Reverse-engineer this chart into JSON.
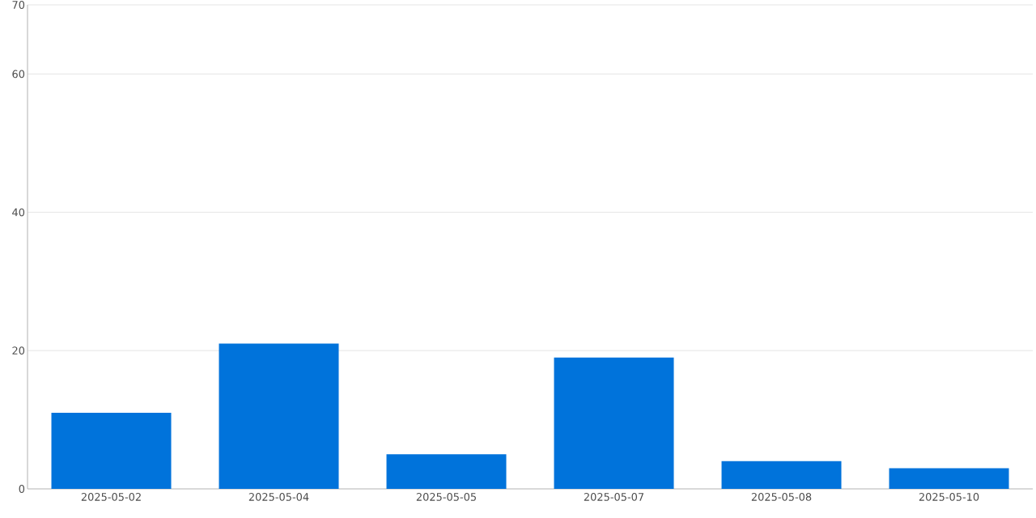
{
  "chart_data": {
    "type": "bar",
    "categories": [
      "2025-05-02",
      "2025-05-04",
      "2025-05-05",
      "2025-05-07",
      "2025-05-08",
      "2025-05-10"
    ],
    "values": [
      11,
      21,
      5,
      19,
      4,
      3
    ],
    "color": "#0073db",
    "ylim": [
      0,
      70
    ],
    "yticks": [
      0,
      20,
      40,
      60,
      70
    ],
    "grid": "y"
  }
}
